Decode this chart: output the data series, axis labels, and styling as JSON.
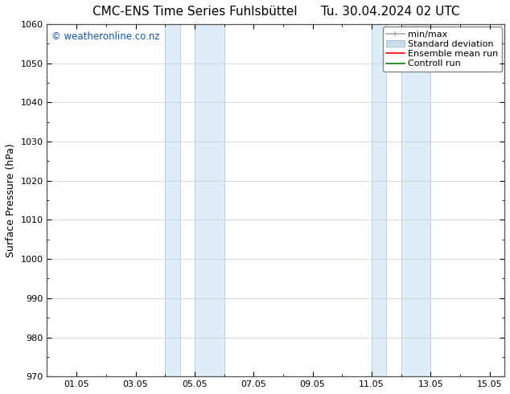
{
  "title": "CMC-ENS Time Series Fuhlsbüttel",
  "title_date": "Tu. 30.04.2024 02 UTC",
  "ylabel": "Surface Pressure (hPa)",
  "ylim": [
    970,
    1060
  ],
  "yticks": [
    970,
    980,
    990,
    1000,
    1010,
    1020,
    1030,
    1040,
    1050,
    1060
  ],
  "xlim_start": 0.0,
  "xlim_end": 15.5,
  "xtick_labels": [
    "01.05",
    "03.05",
    "05.05",
    "07.05",
    "09.05",
    "11.05",
    "13.05",
    "15.05"
  ],
  "xtick_positions": [
    1,
    3,
    5,
    7,
    9,
    11,
    13,
    15
  ],
  "shaded_regions": [
    {
      "x_start": 4.0,
      "x_end": 4.5,
      "color": "#ddeef8"
    },
    {
      "x_start": 5.0,
      "x_end": 6.0,
      "color": "#ddeef8"
    },
    {
      "x_start": 11.0,
      "x_end": 11.5,
      "color": "#ddeef8"
    },
    {
      "x_start": 12.0,
      "x_end": 13.0,
      "color": "#ddeef8"
    }
  ],
  "legend_labels": [
    "min/max",
    "Standard deviation",
    "Ensemble mean run",
    "Controll run"
  ],
  "legend_colors_line": [
    "#aaaaaa",
    "#c8dcea",
    "#ff0000",
    "#008000"
  ],
  "watermark_text": "© weatheronline.co.nz",
  "watermark_color": "#1155bb",
  "background_color": "#ffffff",
  "plot_bg_color": "#ffffff",
  "grid_color": "#cccccc",
  "title_fontsize": 11,
  "axis_label_fontsize": 9,
  "tick_fontsize": 8,
  "legend_fontsize": 8,
  "watermark_fontsize": 8.5
}
